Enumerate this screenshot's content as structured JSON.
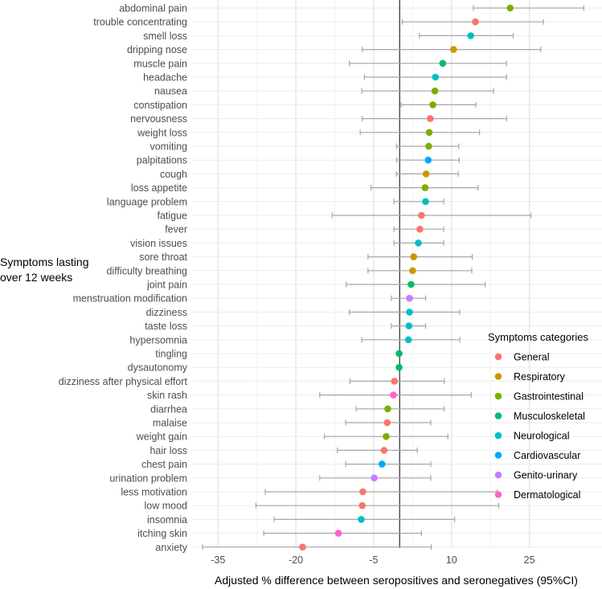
{
  "chart_data": {
    "type": "forest",
    "title": "",
    "xlabel": "Adjusted % difference between seropositives and seronegatives (95%CI)",
    "ylabel_lines": [
      "Symptoms lasting",
      "over 12 weeks"
    ],
    "xlim": [
      -40,
      39
    ],
    "xticks": [
      -35,
      -20,
      -5,
      10,
      25
    ],
    "reference_line": 0,
    "grid": true,
    "legend": {
      "title": "Symptoms categories",
      "position": "right",
      "entries": [
        {
          "name": "General",
          "color": "#F8766D"
        },
        {
          "name": "Respiratory",
          "color": "#CD9600"
        },
        {
          "name": "Gastrointestinal",
          "color": "#7CAE00"
        },
        {
          "name": "Musculoskeletal",
          "color": "#00BE67"
        },
        {
          "name": "Neurological",
          "color": "#00BFC4"
        },
        {
          "name": "Cardiovascular",
          "color": "#00A9FF"
        },
        {
          "name": "Genito-urinary",
          "color": "#C77CFF"
        },
        {
          "name": "Dermatological",
          "color": "#FF61CC"
        }
      ]
    },
    "points": [
      {
        "label": "abdominal pain",
        "category": "Gastrointestinal",
        "estimate": 21.3,
        "lower": 14.2,
        "upper": 35.5
      },
      {
        "label": "trouble concentrating",
        "category": "General",
        "estimate": 14.6,
        "lower": 0.5,
        "upper": 27.7
      },
      {
        "label": "smell loss",
        "category": "Neurological",
        "estimate": 13.7,
        "lower": 3.8,
        "upper": 21.9
      },
      {
        "label": "dripping nose",
        "category": "Respiratory",
        "estimate": 10.4,
        "lower": -7.2,
        "upper": 27.2
      },
      {
        "label": "muscle pain",
        "category": "Musculoskeletal",
        "estimate": 8.3,
        "lower": -9.7,
        "upper": 20.6
      },
      {
        "label": "headache",
        "category": "Neurological",
        "estimate": 6.9,
        "lower": -6.8,
        "upper": 20.6
      },
      {
        "label": "nausea",
        "category": "Gastrointestinal",
        "estimate": 6.8,
        "lower": -7.3,
        "upper": 18.1
      },
      {
        "label": "constipation",
        "category": "Gastrointestinal",
        "estimate": 6.4,
        "lower": 0.3,
        "upper": 14.7
      },
      {
        "label": "nervousness",
        "category": "General",
        "estimate": 5.9,
        "lower": -7.2,
        "upper": 20.6
      },
      {
        "label": "weight loss",
        "category": "Gastrointestinal",
        "estimate": 5.7,
        "lower": -7.6,
        "upper": 15.4
      },
      {
        "label": "vomiting",
        "category": "Gastrointestinal",
        "estimate": 5.6,
        "lower": -0.6,
        "upper": 11.4
      },
      {
        "label": "palpitations",
        "category": "Cardiovascular",
        "estimate": 5.5,
        "lower": -0.6,
        "upper": 11.5
      },
      {
        "label": "cough",
        "category": "Respiratory",
        "estimate": 5.1,
        "lower": -0.6,
        "upper": 11.3
      },
      {
        "label": "loss appetite",
        "category": "Gastrointestinal",
        "estimate": 4.9,
        "lower": -5.5,
        "upper": 15.1
      },
      {
        "label": "language problem",
        "category": "Neurological",
        "estimate": 5.0,
        "lower": -1.1,
        "upper": 8.5
      },
      {
        "label": "fatigue",
        "category": "General",
        "estimate": 4.2,
        "lower": -13.0,
        "upper": 25.3
      },
      {
        "label": "fever",
        "category": "General",
        "estimate": 3.9,
        "lower": -1.1,
        "upper": 8.5
      },
      {
        "label": "vision issues",
        "category": "Neurological",
        "estimate": 3.6,
        "lower": -1.1,
        "upper": 8.5
      },
      {
        "label": "sore throat",
        "category": "Respiratory",
        "estimate": 2.7,
        "lower": -6.1,
        "upper": 14.0
      },
      {
        "label": "difficulty breathing",
        "category": "Respiratory",
        "estimate": 2.5,
        "lower": -6.1,
        "upper": 13.9
      },
      {
        "label": "joint pain",
        "category": "Musculoskeletal",
        "estimate": 2.2,
        "lower": -10.3,
        "upper": 16.5
      },
      {
        "label": "menstruation modification",
        "category": "Genito-urinary",
        "estimate": 1.9,
        "lower": -1.6,
        "upper": 5.0
      },
      {
        "label": "dizziness",
        "category": "Neurological",
        "estimate": 1.9,
        "lower": -9.7,
        "upper": 11.6
      },
      {
        "label": "taste loss",
        "category": "Neurological",
        "estimate": 1.8,
        "lower": -1.6,
        "upper": 5.0
      },
      {
        "label": "hypersomnia",
        "category": "Neurological",
        "estimate": 1.7,
        "lower": -7.3,
        "upper": 11.6
      },
      {
        "label": "tingling",
        "category": "Musculoskeletal",
        "estimate": -0.1,
        "lower": -0.1,
        "upper": -0.1
      },
      {
        "label": "dysautonomy",
        "category": "Musculoskeletal",
        "estimate": -0.1,
        "lower": -0.1,
        "upper": -0.1
      },
      {
        "label": "dizziness after physical effort",
        "category": "General",
        "estimate": -1.0,
        "lower": -9.6,
        "upper": 8.6
      },
      {
        "label": "skin rash",
        "category": "Dermatological",
        "estimate": -1.2,
        "lower": -15.4,
        "upper": 13.8
      },
      {
        "label": "diarrhea",
        "category": "Gastrointestinal",
        "estimate": -2.3,
        "lower": -8.4,
        "upper": 8.6
      },
      {
        "label": "malaise",
        "category": "General",
        "estimate": -2.4,
        "lower": -10.4,
        "upper": 6.0
      },
      {
        "label": "weight gain",
        "category": "Gastrointestinal",
        "estimate": -2.6,
        "lower": -14.5,
        "upper": 9.3
      },
      {
        "label": "hair loss",
        "category": "General",
        "estimate": -3.0,
        "lower": -12.0,
        "upper": 3.4
      },
      {
        "label": "chest pain",
        "category": "Cardiovascular",
        "estimate": -3.4,
        "lower": -10.4,
        "upper": 6.0
      },
      {
        "label": "urination problem",
        "category": "Genito-urinary",
        "estimate": -4.9,
        "lower": -15.4,
        "upper": 6.0
      },
      {
        "label": "less motivation",
        "category": "General",
        "estimate": -7.1,
        "lower": -25.9,
        "upper": 18.8
      },
      {
        "label": "low mood",
        "category": "General",
        "estimate": -7.2,
        "lower": -27.7,
        "upper": 19.1
      },
      {
        "label": "insomnia",
        "category": "Neurological",
        "estimate": -7.4,
        "lower": -24.2,
        "upper": 10.6
      },
      {
        "label": "itching skin",
        "category": "Dermatological",
        "estimate": -11.8,
        "lower": -26.2,
        "upper": 4.2
      },
      {
        "label": "anxiety",
        "category": "General",
        "estimate": -18.7,
        "lower": -38.0,
        "upper": 6.1
      }
    ]
  }
}
